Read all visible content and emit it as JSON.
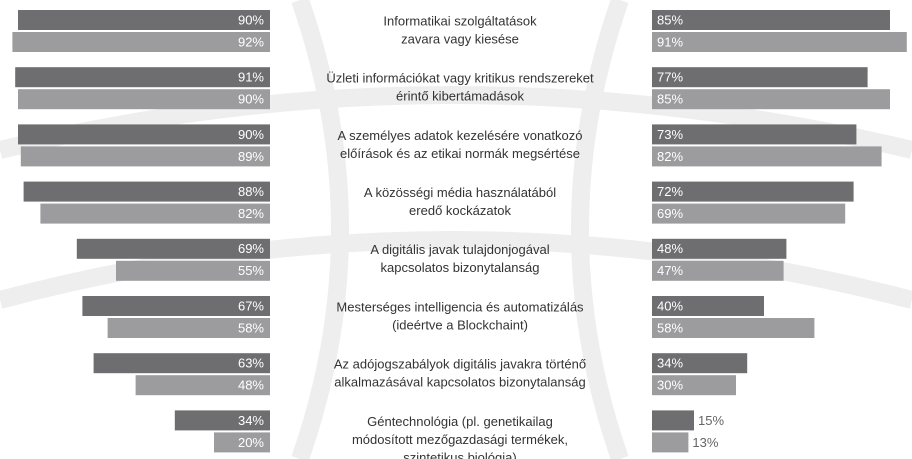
{
  "chart_data": {
    "type": "butterfly-bar",
    "categories": [
      [
        "Informatikai szolgáltatások",
        "zavara vagy kiesése"
      ],
      [
        "Üzleti információkat vagy kritikus rendszereket",
        "érintő kibertámadások"
      ],
      [
        "A személyes adatok kezelésére vonatkozó",
        "előírások és az etikai normák megsértése"
      ],
      [
        "A közösségi média használatából",
        "eredő kockázatok"
      ],
      [
        "A digitális javak tulajdonjogával",
        "kapcsolatos bizonytalanság"
      ],
      [
        "Mesterséges intelligencia és automatizálás",
        "(ideértve a Blockchaint)"
      ],
      [
        "Az adójogszabályok digitális javakra történő",
        "alkalmazásával kapcsolatos bizonytalanság"
      ],
      [
        "Géntechnológia (pl. genetikailag",
        "módosított mezőgazdasági termékek,",
        "szintetikus biológia)"
      ]
    ],
    "series": [
      {
        "side": "left",
        "color": "#6e6e70",
        "values": [
          90,
          91,
          90,
          88,
          69,
          67,
          63,
          34
        ],
        "value_labels": [
          "90%",
          "91%",
          "90%",
          "88%",
          "69%",
          "67%",
          "63%",
          "34%"
        ]
      },
      {
        "side": "left",
        "color": "#9c9c9e",
        "values": [
          92,
          90,
          89,
          82,
          55,
          58,
          48,
          20
        ],
        "value_labels": [
          "92%",
          "90%",
          "89%",
          "82%",
          "55%",
          "58%",
          "48%",
          "20%"
        ]
      },
      {
        "side": "right",
        "color": "#6e6e70",
        "values": [
          85,
          77,
          73,
          72,
          48,
          40,
          34,
          15
        ],
        "value_labels": [
          "85%",
          "77%",
          "73%",
          "72%",
          "48%",
          "40%",
          "34%",
          "15%"
        ]
      },
      {
        "side": "right",
        "color": "#9c9c9e",
        "values": [
          91,
          85,
          82,
          69,
          47,
          58,
          30,
          13
        ],
        "value_labels": [
          "91%",
          "85%",
          "82%",
          "69%",
          "47%",
          "58%",
          "30%",
          "13%"
        ]
      }
    ]
  }
}
